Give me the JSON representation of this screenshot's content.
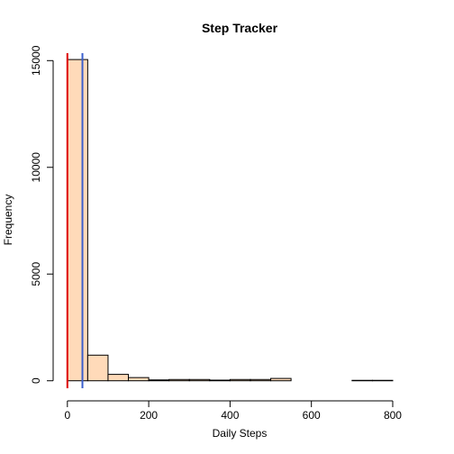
{
  "chart_data": {
    "type": "bar",
    "title": "Step Tracker",
    "xlabel": "Daily Steps",
    "ylabel": "Frequency",
    "bins": [
      {
        "start": 0,
        "end": 50,
        "count": 15050
      },
      {
        "start": 50,
        "end": 100,
        "count": 1200
      },
      {
        "start": 100,
        "end": 150,
        "count": 300
      },
      {
        "start": 150,
        "end": 200,
        "count": 150
      },
      {
        "start": 200,
        "end": 250,
        "count": 40
      },
      {
        "start": 250,
        "end": 300,
        "count": 60
      },
      {
        "start": 300,
        "end": 350,
        "count": 60
      },
      {
        "start": 350,
        "end": 400,
        "count": 30
      },
      {
        "start": 400,
        "end": 450,
        "count": 60
      },
      {
        "start": 450,
        "end": 500,
        "count": 60
      },
      {
        "start": 500,
        "end": 550,
        "count": 110
      },
      {
        "start": 550,
        "end": 600,
        "count": 0
      },
      {
        "start": 600,
        "end": 650,
        "count": 0
      },
      {
        "start": 650,
        "end": 700,
        "count": 0
      },
      {
        "start": 700,
        "end": 750,
        "count": 20
      },
      {
        "start": 750,
        "end": 800,
        "count": 20
      }
    ],
    "xticks": [
      0,
      200,
      400,
      600,
      800
    ],
    "yticks": [
      0,
      5000,
      10000,
      15000
    ],
    "xlim": [
      -4,
      851
    ],
    "ylim": [
      -350,
      15350
    ],
    "vlines": [
      {
        "value": 0,
        "color": "#dd0000"
      },
      {
        "value": 37,
        "color": "#3a5fcd"
      }
    ],
    "bar_fill": "#ffdab9",
    "bar_stroke": "#000000"
  }
}
